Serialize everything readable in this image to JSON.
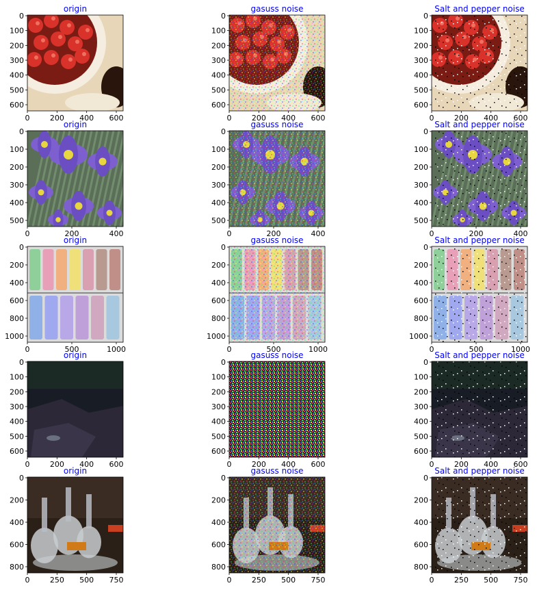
{
  "colors": {
    "title": "#0000ff",
    "axis": "#000000",
    "background": "#ffffff"
  },
  "columns": [
    {
      "title": "origin",
      "noise": "none"
    },
    {
      "title": "gasuss noise",
      "noise": "gaussian"
    },
    {
      "title": "Salt and pepper noise",
      "noise": "salt-pepper"
    }
  ],
  "rows": [
    {
      "scene": "strawberries",
      "y_ticks": [
        "0",
        "100",
        "200",
        "300",
        "400",
        "500",
        "600"
      ],
      "x_ticks": [
        "0",
        "200",
        "400",
        "600"
      ]
    },
    {
      "scene": "iris flowers",
      "y_ticks": [
        "0",
        "100",
        "200",
        "300",
        "400",
        "500"
      ],
      "x_ticks": [
        "0",
        "200",
        "400"
      ]
    },
    {
      "scene": "pastel chalks",
      "y_ticks": [
        "0",
        "200",
        "400",
        "600",
        "800",
        "1000"
      ],
      "x_ticks": [
        "0",
        "500",
        "1000"
      ]
    },
    {
      "scene": "dark rocks",
      "y_ticks": [
        "0",
        "100",
        "200",
        "300",
        "400",
        "500",
        "600"
      ],
      "x_ticks": [
        "0",
        "200",
        "400",
        "600"
      ]
    },
    {
      "scene": "glass decanters",
      "y_ticks": [
        "0",
        "200",
        "400",
        "600",
        "800"
      ],
      "x_ticks": [
        "0",
        "250",
        "500",
        "750"
      ]
    }
  ]
}
